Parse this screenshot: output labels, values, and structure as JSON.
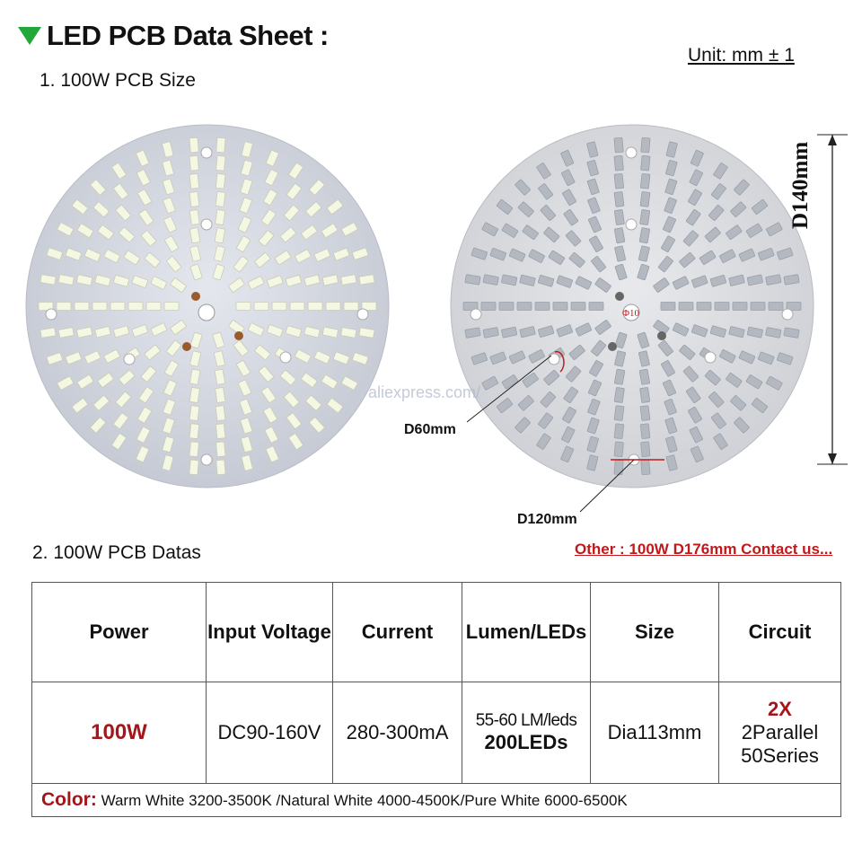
{
  "header": {
    "title": "LED PCB Data Sheet :",
    "unit": "Unit: mm ± 1"
  },
  "section1": {
    "title": "1. 100W PCB Size"
  },
  "section2": {
    "title": "2. 100W PCB Datas"
  },
  "other_note": "Other : 100W D176mm Contact us...",
  "diagram": {
    "dim_height": "D140mm",
    "dim_inner": "D60mm",
    "dim_outer": "D120mm",
    "hole": "Φ10"
  },
  "watermark": "aliexpress.com/",
  "table": {
    "headers": [
      "Power",
      "Input Voltage",
      "Current",
      "Lumen/LEDs",
      "Size",
      "Circuit"
    ],
    "power": "100W",
    "voltage": "DC90-160V",
    "current": "280-300mA",
    "lumen_line1": "55-60 LM/leds",
    "lumen_line2": "200LEDs",
    "size": "Dia113mm",
    "circuit_line1": "2X",
    "circuit_line2": "2Parallel",
    "circuit_line3": "50Series",
    "color_label": "Color:",
    "color_text": "Warm White 3200-3500K /Natural White 4000-4500K/Pure White 6000-6500K"
  },
  "colors": {
    "accent_red": "#c0191b",
    "title_triangle": "#22a83a",
    "pcb_board": "#d7dbe3",
    "led_on": "#f4f8e2",
    "led_off": "#b4b8c0"
  }
}
